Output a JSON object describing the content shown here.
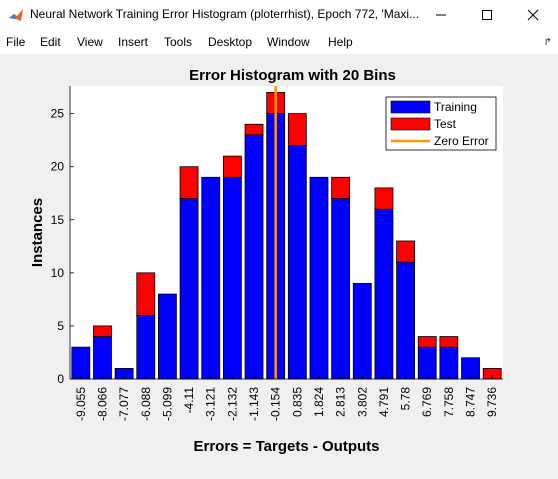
{
  "window": {
    "title": "Neural Network Training Error Histogram (ploterrhist), Epoch 772, 'Maxi...",
    "controls": [
      "minimize",
      "maximize",
      "close"
    ]
  },
  "menu": {
    "items": [
      "File",
      "Edit",
      "View",
      "Insert",
      "Tools",
      "Desktop",
      "Window",
      "Help"
    ]
  },
  "chart_data": {
    "type": "bar",
    "stacked": true,
    "title": "Error Histogram with 20 Bins",
    "xlabel": "Errors = Targets - Outputs",
    "ylabel": "Instances",
    "categories": [
      "-9.055",
      "-8.066",
      "-7.077",
      "-6.088",
      "-5.099",
      "-4.11",
      "-3.121",
      "-2.132",
      "-1.143",
      "-0.154",
      "0.835",
      "1.824",
      "2.813",
      "3.802",
      "4.791",
      "5.78",
      "6.769",
      "7.758",
      "8.747",
      "9.736"
    ],
    "series": [
      {
        "name": "Training",
        "color": "#0000ff",
        "values": [
          3,
          4,
          1,
          6,
          8,
          17,
          19,
          19,
          23,
          25,
          22,
          19,
          17,
          9,
          16,
          11,
          3,
          3,
          2,
          0
        ]
      },
      {
        "name": "Test",
        "color": "#ff0000",
        "values": [
          0,
          1,
          0,
          4,
          0,
          3,
          0,
          2,
          1,
          2,
          3,
          0,
          2,
          0,
          2,
          2,
          1,
          1,
          0,
          1
        ]
      }
    ],
    "zero_error": {
      "name": "Zero Error",
      "color": "#ff9900",
      "bin": "-0.154"
    },
    "yticks": [
      0,
      5,
      10,
      15,
      20,
      25
    ],
    "ylim": [
      0,
      27.6
    ],
    "legend": "top-right",
    "grid": false
  }
}
